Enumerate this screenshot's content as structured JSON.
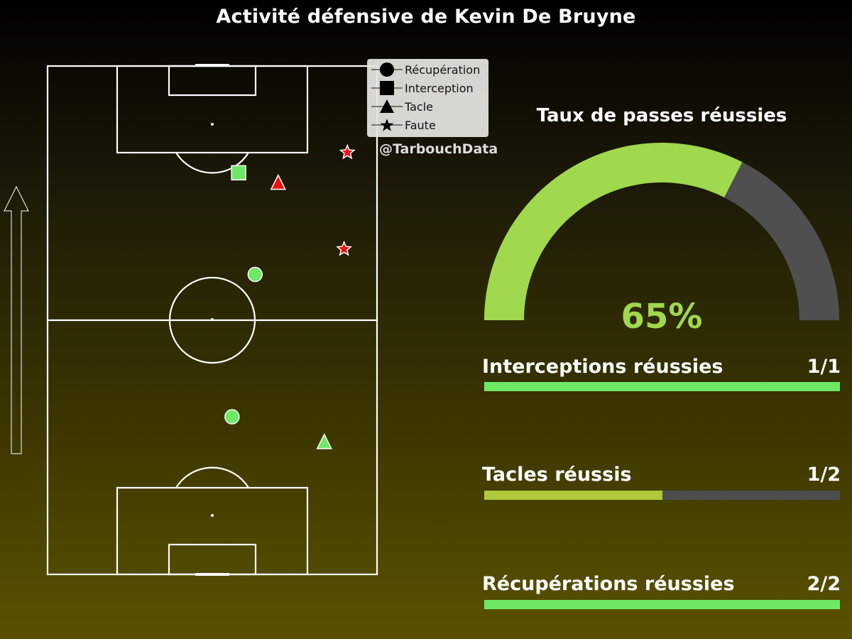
{
  "title": "Activité défensive de Kevin De Bruyne",
  "credit": "@TarbouchData",
  "legend": [
    {
      "label": "Récupération",
      "icon": "circle-icon"
    },
    {
      "label": "Interception",
      "icon": "square-icon"
    },
    {
      "label": "Tacle",
      "icon": "triangle-icon"
    },
    {
      "label": "Faute",
      "icon": "star-icon"
    }
  ],
  "gauge": {
    "title": "Taux de passes réussies",
    "value_label": "65%",
    "percent": 65,
    "fill_color": "#a0d84e",
    "rest_color": "#4f4f4f"
  },
  "stats": [
    {
      "label": "Interceptions réussies",
      "value": "1/1",
      "ratio": 1.0,
      "color": "#6ee865"
    },
    {
      "label": "Tacles réussis",
      "value": "1/2",
      "ratio": 0.5,
      "color": "#b0c93a"
    },
    {
      "label": "Récupérations réussies",
      "value": "2/2",
      "ratio": 1.0,
      "color": "#6ee865"
    }
  ],
  "colors": {
    "success": "#6ee865",
    "fail": "#ee1111",
    "pitch_lines": "#ffffff"
  },
  "chart_data": {
    "type": "scatter",
    "title": "Activité défensive de Kevin De Bruyne",
    "xlim": [
      0,
      100
    ],
    "ylim": [
      0,
      100
    ],
    "series": [
      {
        "name": "Récupération",
        "marker": "circle",
        "points": [
          {
            "x": 63,
            "y": 59,
            "outcome": "success"
          },
          {
            "x": 56,
            "y": 31,
            "outcome": "success"
          }
        ]
      },
      {
        "name": "Interception",
        "marker": "square",
        "points": [
          {
            "x": 58,
            "y": 79,
            "outcome": "success"
          }
        ]
      },
      {
        "name": "Tacle",
        "marker": "triangle",
        "points": [
          {
            "x": 70,
            "y": 77,
            "outcome": "fail"
          },
          {
            "x": 84,
            "y": 26,
            "outcome": "success"
          }
        ]
      },
      {
        "name": "Faute",
        "marker": "star",
        "points": [
          {
            "x": 91,
            "y": 83,
            "outcome": "fail"
          },
          {
            "x": 90,
            "y": 64,
            "outcome": "fail"
          }
        ]
      }
    ]
  }
}
